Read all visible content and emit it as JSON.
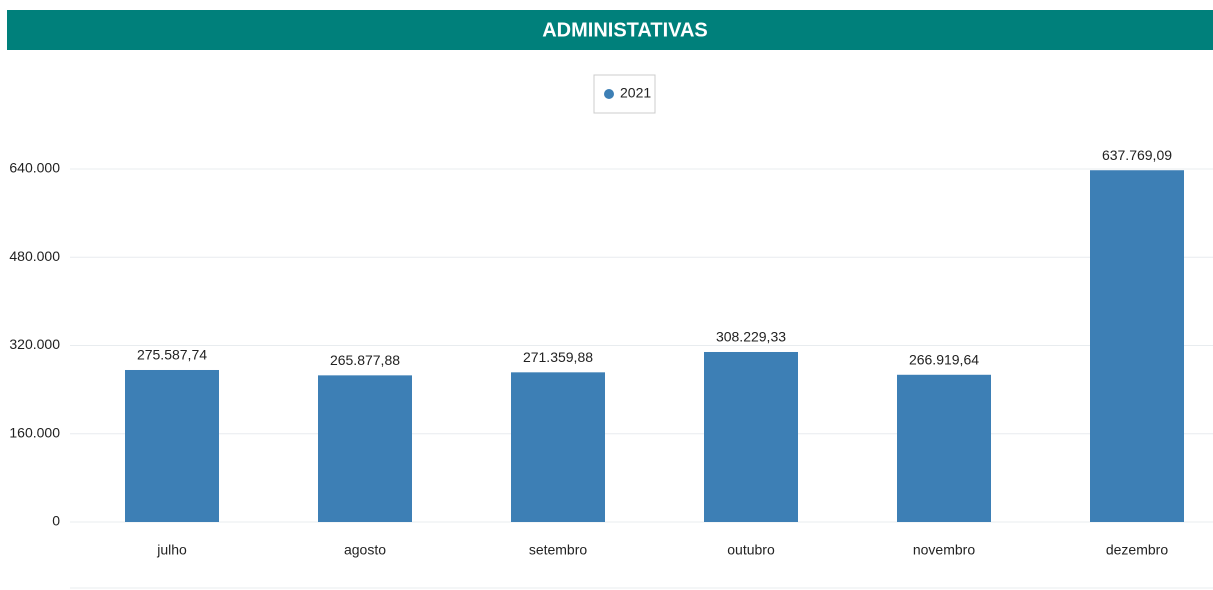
{
  "chart_data": {
    "type": "bar",
    "title": "ADMINISTATIVAS",
    "categories": [
      "julho",
      "agosto",
      "setembro",
      "outubro",
      "novembro",
      "dezembro"
    ],
    "series": [
      {
        "name": "2021",
        "color": "#3d7fb5",
        "values": [
          275587.74,
          265877.88,
          271359.88,
          308229.33,
          266919.64,
          637769.09
        ],
        "value_labels": [
          "275.587,74",
          "265.877,88",
          "271.359,88",
          "308.229,33",
          "266.919,64",
          "637.769,09"
        ]
      }
    ],
    "ylim": [
      0,
      640000
    ],
    "yticks": [
      0,
      {
        "value": 160000,
        "label": "160.000"
      },
      {
        "value": 320000,
        "label": "320.000"
      },
      {
        "value": 480000,
        "label": "480.000"
      },
      {
        "value": 640000,
        "label": "640.000"
      }
    ],
    "grid": true,
    "legend": "top"
  }
}
